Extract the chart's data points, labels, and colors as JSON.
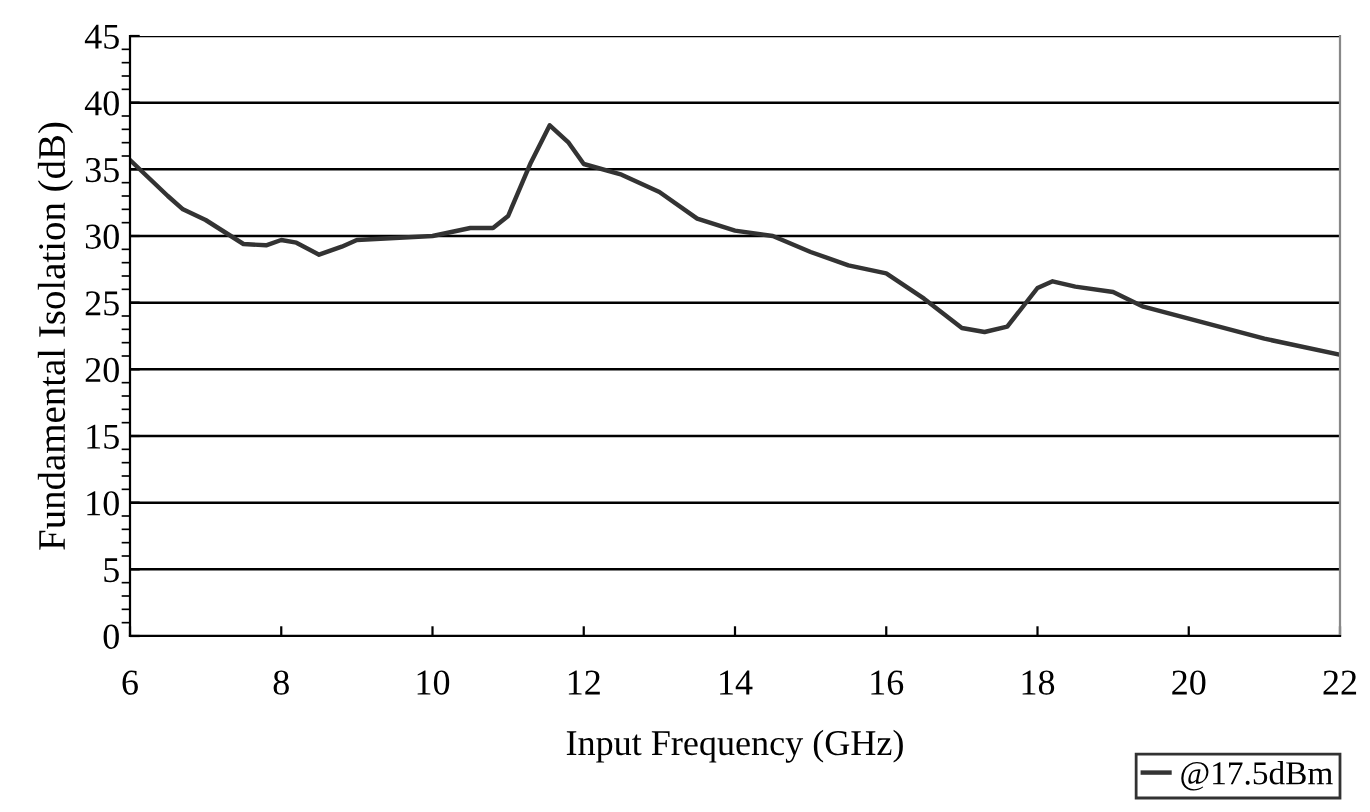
{
  "chart_data": {
    "type": "line",
    "xlabel": "Input Frequency (GHz)",
    "ylabel": "Fundamental Isolation (dB)",
    "xlim": [
      6,
      22
    ],
    "xticks": [
      6,
      8,
      10,
      12,
      14,
      16,
      18,
      20,
      22
    ],
    "ylim": [
      0,
      45
    ],
    "yticks": [
      0,
      5,
      10,
      15,
      20,
      25,
      30,
      35,
      40,
      45
    ],
    "grid": "y",
    "legend": "bottom right",
    "marker": "none",
    "line_style": "solid",
    "series": [
      {
        "name": "@17.5dBm",
        "color": "#333333",
        "x": [
          6,
          6.5,
          6.7,
          7,
          7.5,
          7.8,
          8,
          8.2,
          8.5,
          8.8,
          9,
          10,
          10.5,
          10.8,
          11,
          11.3,
          11.55,
          11.8,
          12,
          12.5,
          13,
          13.5,
          14,
          14.5,
          15,
          15.5,
          16,
          16.5,
          17,
          17.3,
          17.6,
          18,
          18.2,
          18.5,
          19,
          19.4,
          20,
          21,
          22
        ],
        "values": [
          35.7,
          33,
          32,
          31.2,
          29.4,
          29.3,
          29.7,
          29.5,
          28.6,
          29.2,
          29.7,
          30.0,
          30.6,
          30.6,
          31.5,
          35.5,
          38.3,
          37,
          35.4,
          34.6,
          33.3,
          31.3,
          30.4,
          30.0,
          28.8,
          27.8,
          27.2,
          25.3,
          23.1,
          22.8,
          23.2,
          26.1,
          26.6,
          26.2,
          25.8,
          24.7,
          23.8,
          22.3,
          21.1
        ]
      }
    ]
  }
}
